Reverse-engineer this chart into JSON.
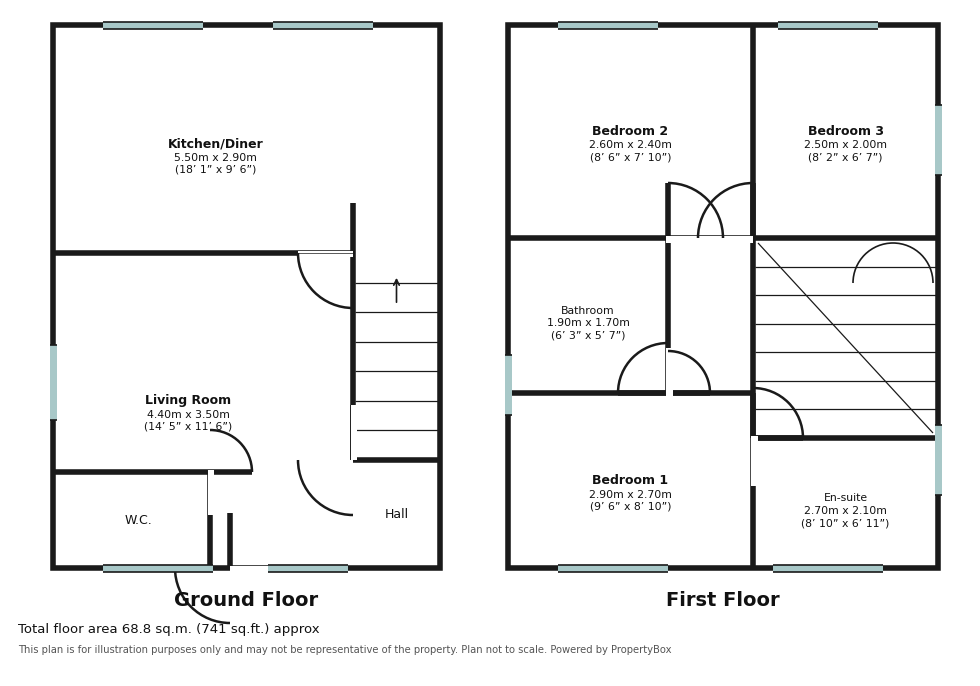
{
  "background_color": "#ffffff",
  "wall_color": "#1a1a1a",
  "fill_color": "#ffffff",
  "wall_lw": 4.0,
  "door_lw": 1.8,
  "stair_lw": 0.9,
  "win_color": "#a8c8c8",
  "watermark_color": "#c8e8e8",
  "ground_floor_label": "Ground Floor",
  "first_floor_label": "First Floor",
  "footer_line1": "Total floor area 68.8 sq.m. (741 sq.ft.) approx",
  "footer_line2": "This plan is for illustration purposes only and may not be representative of the property. Plan not to scale. Powered by PropertyBox",
  "rooms": {
    "kitchen": {
      "label": "Kitchen/Diner",
      "dim1": "5.50m x 2.90m",
      "dim2": "(18’ 1” x 9’ 6”)"
    },
    "living": {
      "label": "Living Room",
      "dim1": "4.40m x 3.50m",
      "dim2": "(14’ 5” x 11’ 6”)"
    },
    "hall": {
      "label": "Hall"
    },
    "wc": {
      "label": "W.C."
    },
    "bedroom1": {
      "label": "Bedroom 1",
      "dim1": "2.90m x 2.70m",
      "dim2": "(9’ 6” x 8’ 10”)"
    },
    "bedroom2": {
      "label": "Bedroom 2",
      "dim1": "2.60m x 2.40m",
      "dim2": "(8’ 6” x 7’ 10”)"
    },
    "bedroom3": {
      "label": "Bedroom 3",
      "dim1": "2.50m x 2.00m",
      "dim2": "(8’ 2” x 6’ 7”)"
    },
    "bathroom": {
      "label": "Bathroom",
      "dim1": "1.90m x 1.70m",
      "dim2": "(6’ 3” x 5’ 7”)"
    },
    "ensuite": {
      "label": "En-suite",
      "dim1": "2.70m x 2.10m",
      "dim2": "(8’ 10” x 6’ 11”)"
    }
  }
}
